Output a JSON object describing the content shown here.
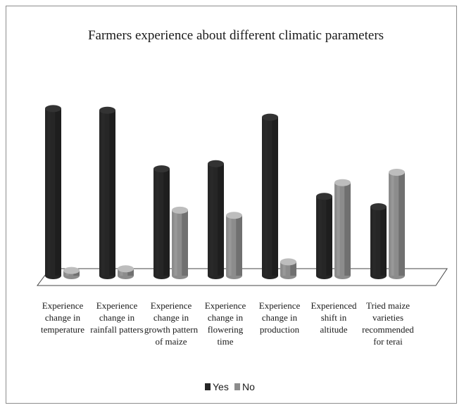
{
  "chart_data": {
    "type": "bar",
    "title": "Farmers experience about different climatic parameters",
    "categories": [
      [
        "Experience",
        "change in",
        "temperature"
      ],
      [
        "Experience",
        "change in",
        "rainfall patters"
      ],
      [
        "Experience",
        "change in",
        "growth pattern",
        "of maize"
      ],
      [
        "Experience",
        "change in",
        "flowering",
        "time"
      ],
      [
        "Experience",
        "change in",
        "production"
      ],
      [
        "Experienced",
        "shift in",
        "altitude"
      ],
      [
        "Tried maize",
        "varieties",
        "recommended",
        "for terai"
      ]
    ],
    "series": [
      {
        "name": "Yes",
        "color": "#262626",
        "values": [
          97,
          96,
          62,
          65,
          92,
          46,
          40
        ]
      },
      {
        "name": "No",
        "color": "#8c8c8c",
        "values": [
          3,
          4,
          38,
          35,
          8,
          54,
          60
        ]
      }
    ],
    "ylim": [
      0,
      100
    ],
    "grid": false,
    "legend": "bottom-center"
  }
}
